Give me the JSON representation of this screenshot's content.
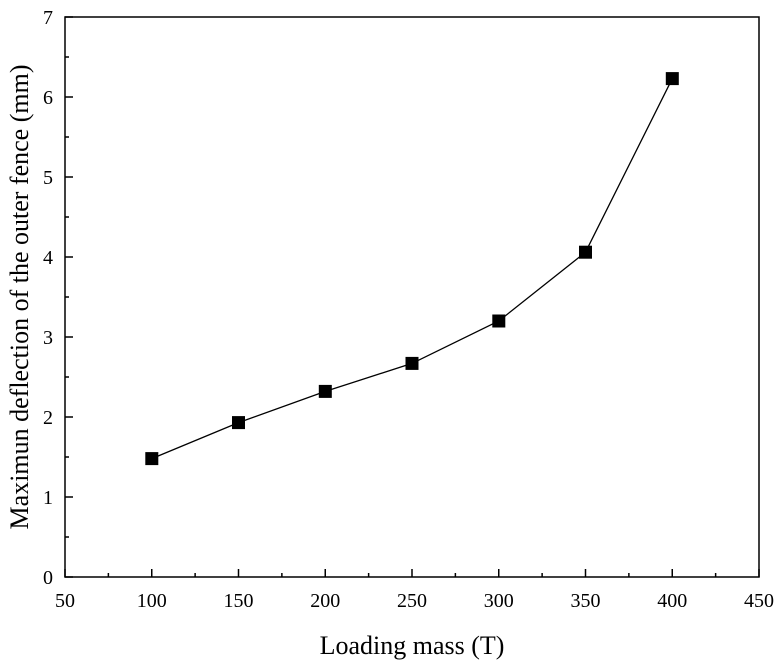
{
  "chart_data": {
    "type": "line",
    "title": "",
    "xlabel": "Loading mass (T)",
    "ylabel": "Maximun deflection of the outer fence (mm)",
    "xlim": [
      50,
      450
    ],
    "ylim": [
      0,
      7
    ],
    "x_ticks": [
      50,
      100,
      150,
      200,
      250,
      300,
      350,
      400,
      450
    ],
    "y_ticks": [
      0,
      1,
      2,
      3,
      4,
      5,
      6,
      7
    ],
    "grid": false,
    "legend": "none",
    "marker": "square",
    "line_color": "#000000",
    "marker_color": "#000000",
    "series": [
      {
        "x": [
          100,
          150,
          200,
          250,
          300,
          350,
          400
        ],
        "y": [
          1.48,
          1.93,
          2.32,
          2.67,
          3.2,
          4.06,
          6.23
        ]
      }
    ]
  }
}
